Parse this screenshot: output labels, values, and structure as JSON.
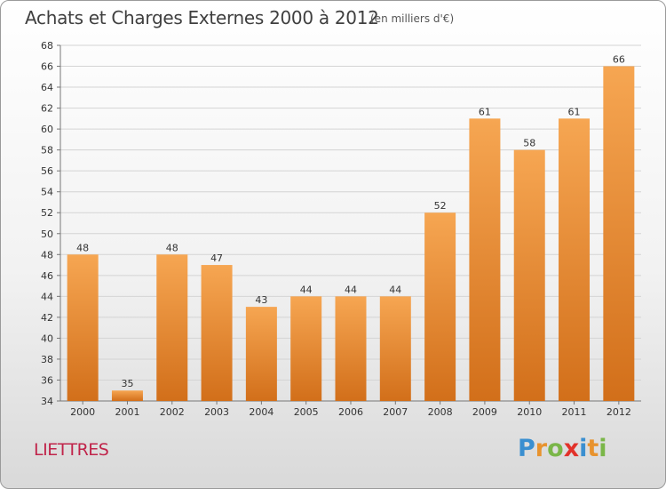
{
  "title": "Achats et Charges Externes 2000 à 2012",
  "subtitle": "(en milliers d'€)",
  "commune": "LIETTRES",
  "brand": {
    "letters": [
      {
        "ch": "P",
        "color": "#3a8fd0"
      },
      {
        "ch": "r",
        "color": "#e8932e"
      },
      {
        "ch": "o",
        "color": "#7ab648"
      },
      {
        "ch": "x",
        "color": "#e2322a"
      },
      {
        "ch": "i",
        "color": "#3a8fd0"
      },
      {
        "ch": "t",
        "color": "#e8932e"
      },
      {
        "ch": "i",
        "color": "#7ab648"
      }
    ]
  },
  "chart_data": {
    "type": "bar",
    "categories": [
      "2000",
      "2001",
      "2002",
      "2003",
      "2004",
      "2005",
      "2006",
      "2007",
      "2008",
      "2009",
      "2010",
      "2011",
      "2012"
    ],
    "values": [
      48,
      35,
      48,
      47,
      43,
      44,
      44,
      44,
      52,
      61,
      58,
      61,
      66
    ],
    "ylim": [
      34,
      68
    ],
    "yticks": [
      34,
      36,
      38,
      40,
      42,
      44,
      46,
      48,
      50,
      52,
      54,
      56,
      58,
      60,
      62,
      64,
      66,
      68
    ],
    "grid": true,
    "bar_color_top": "#f6a652",
    "bar_color_bottom": "#d26f1a"
  }
}
